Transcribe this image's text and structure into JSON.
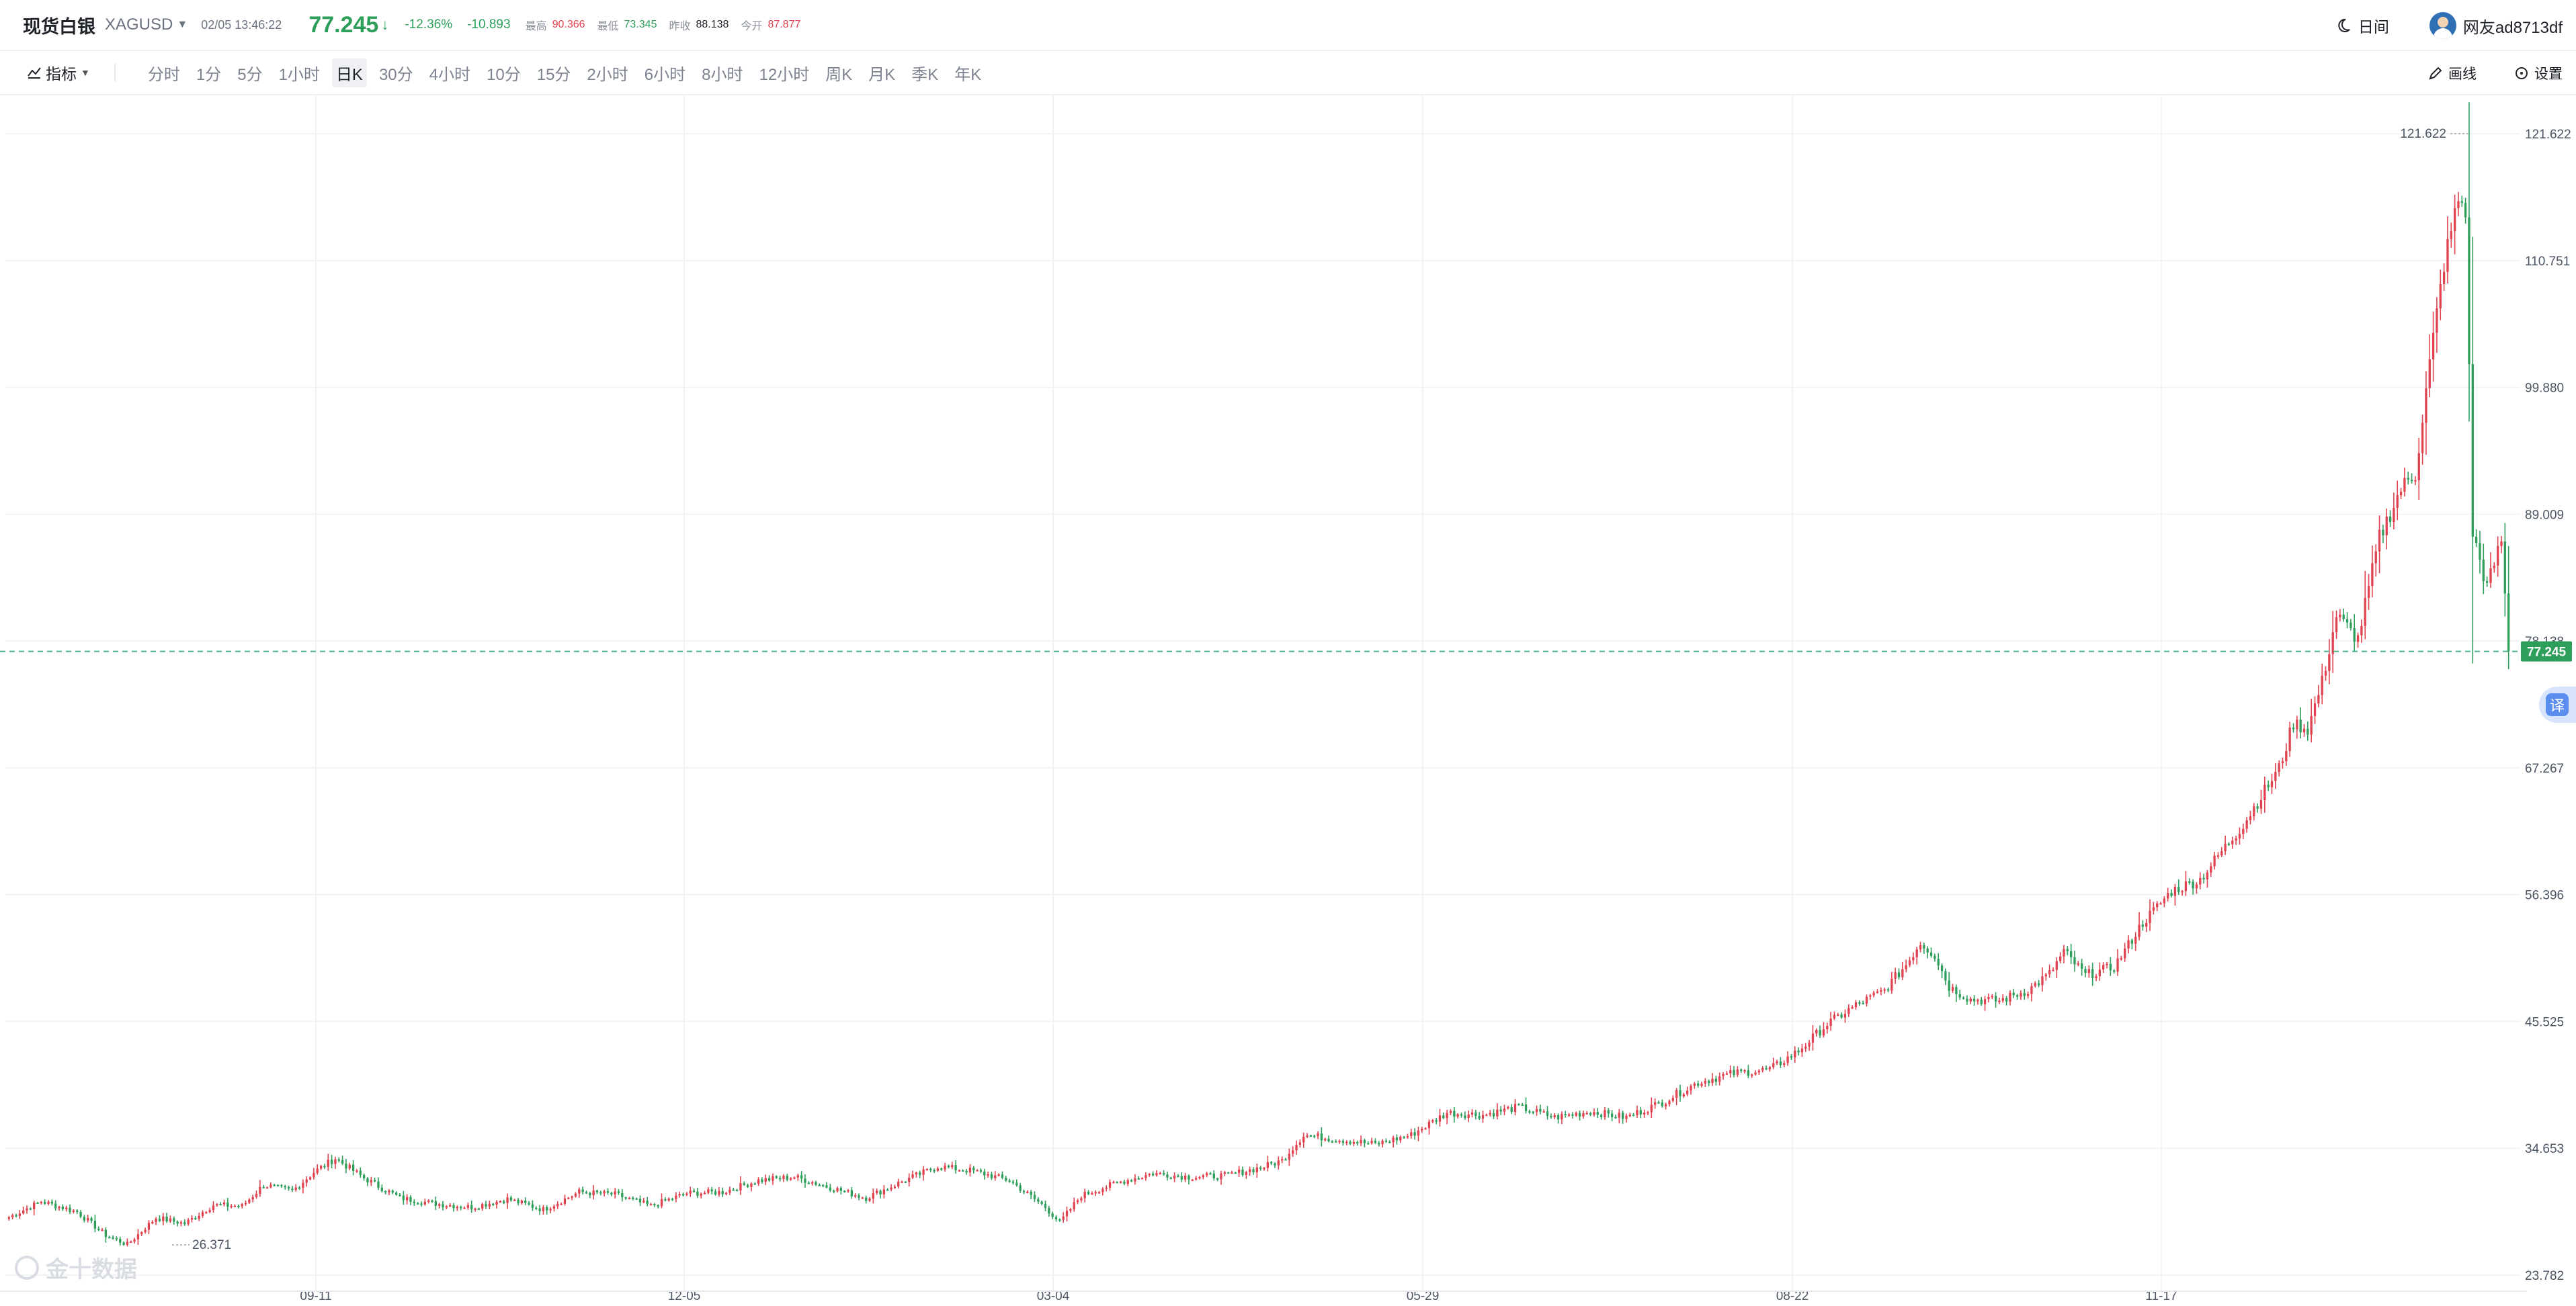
{
  "header": {
    "name": "现货白银",
    "code": "XAGUSD",
    "time": "02/05 13:46:22",
    "price": "77.245",
    "change_pct": "-12.36%",
    "change": "-10.893",
    "high_label": "最高",
    "high": "90.366",
    "low_label": "最低",
    "low": "73.345",
    "prev_label": "昨收",
    "prev": "88.138",
    "open_label": "今开",
    "open": "87.877",
    "theme_label": "日间",
    "user_name": "网友ad8713df"
  },
  "toolbar": {
    "indicator_label": "指标",
    "periods": [
      "分时",
      "1分",
      "5分",
      "1小时",
      "日K",
      "30分",
      "4小时",
      "10分",
      "15分",
      "2小时",
      "6小时",
      "8小时",
      "12小时",
      "周K",
      "月K",
      "季K",
      "年K"
    ],
    "active_period": "日K",
    "draw_label": "画线",
    "settings_label": "设置"
  },
  "watermark": "金十数据",
  "translate_label": "译",
  "colors": {
    "up": "#e0424f",
    "down": "#2e9f5b",
    "grid": "#f1f3f5",
    "current_line": "#4fb389"
  },
  "chart_data": {
    "type": "candlestick",
    "y_ticks": [
      "121.622",
      "110.751",
      "99.880",
      "89.009",
      "78.138",
      "67.267",
      "56.396",
      "45.525",
      "34.653",
      "23.782"
    ],
    "x_ticks": [
      "09-11",
      "12-05",
      "03-04",
      "05-29",
      "08-22",
      "11-17"
    ],
    "ylim": [
      23.782,
      121.622
    ],
    "current_price": "77.245",
    "max_marker": "121.622",
    "min_marker": "26.371",
    "close_path": [
      [
        0,
        28.6
      ],
      [
        10,
        30.1
      ],
      [
        20,
        29.2
      ],
      [
        28,
        27.2
      ],
      [
        34,
        26.4
      ],
      [
        42,
        28.7
      ],
      [
        50,
        28.2
      ],
      [
        58,
        29.8
      ],
      [
        66,
        29.7
      ],
      [
        72,
        31.5
      ],
      [
        80,
        31.0
      ],
      [
        86,
        32.6
      ],
      [
        92,
        33.8
      ],
      [
        100,
        32.1
      ],
      [
        110,
        30.4
      ],
      [
        120,
        29.9
      ],
      [
        130,
        29.6
      ],
      [
        140,
        30.3
      ],
      [
        150,
        29.4
      ],
      [
        160,
        30.9
      ],
      [
        170,
        30.7
      ],
      [
        180,
        29.7
      ],
      [
        190,
        30.8
      ],
      [
        200,
        30.9
      ],
      [
        210,
        31.9
      ],
      [
        220,
        32.2
      ],
      [
        230,
        31.3
      ],
      [
        240,
        30.4
      ],
      [
        250,
        31.8
      ],
      [
        260,
        33.1
      ],
      [
        270,
        32.7
      ],
      [
        280,
        31.9
      ],
      [
        290,
        29.6
      ],
      [
        294,
        28.3
      ],
      [
        300,
        30.6
      ],
      [
        310,
        31.7
      ],
      [
        320,
        32.5
      ],
      [
        330,
        32.2
      ],
      [
        340,
        32.3
      ],
      [
        350,
        33.0
      ],
      [
        356,
        33.6
      ],
      [
        362,
        35.8
      ],
      [
        372,
        35.4
      ],
      [
        382,
        35.0
      ],
      [
        392,
        35.8
      ],
      [
        402,
        37.7
      ],
      [
        412,
        37.5
      ],
      [
        422,
        38.2
      ],
      [
        432,
        37.3
      ],
      [
        442,
        37.8
      ],
      [
        452,
        37.3
      ],
      [
        462,
        38.6
      ],
      [
        472,
        40.3
      ],
      [
        482,
        41.1
      ],
      [
        492,
        41.4
      ],
      [
        500,
        43.0
      ],
      [
        508,
        45.3
      ],
      [
        516,
        46.9
      ],
      [
        524,
        48.2
      ],
      [
        530,
        50.4
      ],
      [
        534,
        52.3
      ],
      [
        538,
        51.2
      ],
      [
        542,
        48.5
      ],
      [
        548,
        47.4
      ],
      [
        556,
        47.3
      ],
      [
        564,
        48.2
      ],
      [
        570,
        49.6
      ],
      [
        574,
        51.5
      ],
      [
        580,
        49.5
      ],
      [
        588,
        50.2
      ],
      [
        596,
        54.0
      ],
      [
        604,
        56.7
      ],
      [
        612,
        57.7
      ],
      [
        618,
        60.1
      ],
      [
        624,
        62.4
      ],
      [
        630,
        65.3
      ],
      [
        634,
        67.2
      ],
      [
        638,
        71.1
      ],
      [
        642,
        70.6
      ],
      [
        646,
        74.6
      ],
      [
        650,
        80.3
      ],
      [
        656,
        78.3
      ],
      [
        662,
        87.0
      ],
      [
        668,
        91.2
      ],
      [
        672,
        92.5
      ],
      [
        676,
        101.9
      ],
      [
        680,
        110.5
      ],
      [
        684,
        116.0
      ],
      [
        686,
        115.1
      ],
      [
        688,
        87.4
      ],
      [
        692,
        82.7
      ],
      [
        696,
        86.8
      ],
      [
        698,
        77.25
      ]
    ]
  }
}
